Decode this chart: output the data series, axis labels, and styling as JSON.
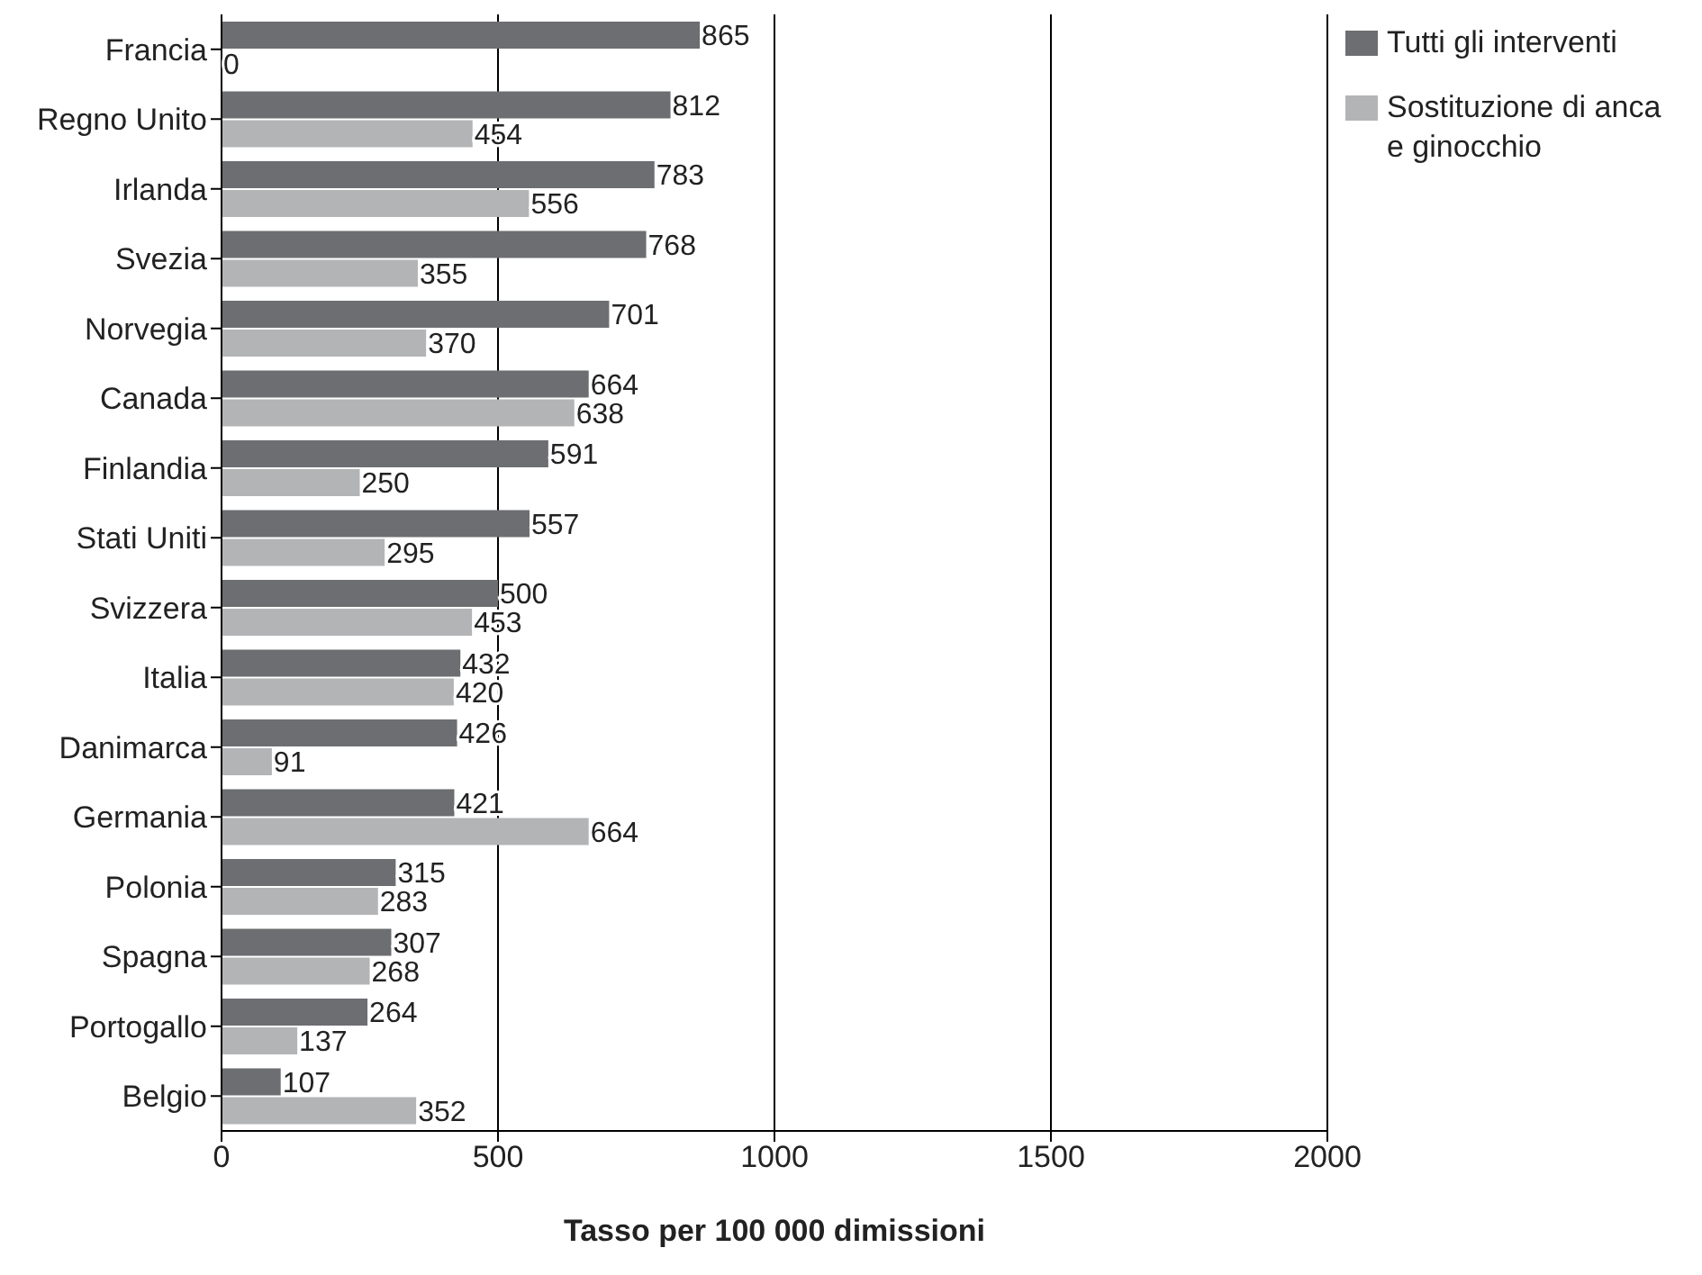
{
  "chart_data": {
    "type": "bar",
    "orientation": "horizontal",
    "xlabel": "Tasso per 100 000 dimissioni",
    "categories": [
      "Francia",
      "Regno Unito",
      "Irlanda",
      "Svezia",
      "Norvegia",
      "Canada",
      "Finlandia",
      "Stati Uniti",
      "Svizzera",
      "Italia",
      "Danimarca",
      "Germania",
      "Polonia",
      "Spagna",
      "Portogallo",
      "Belgio"
    ],
    "series": [
      {
        "name": "Tutti gli interventi",
        "color": "#6d6e71",
        "values": [
          865,
          812,
          783,
          768,
          701,
          664,
          591,
          557,
          500,
          432,
          426,
          421,
          315,
          307,
          264,
          107
        ]
      },
      {
        "name": "Sostituzione di anca e ginocchio",
        "color": "#b3b4b6",
        "values": [
          0,
          454,
          556,
          355,
          370,
          638,
          250,
          295,
          453,
          420,
          91,
          664,
          283,
          268,
          137,
          352
        ]
      }
    ],
    "xlim": [
      0,
      2000
    ],
    "xticks": [
      0,
      500,
      1000,
      1500,
      2000
    ],
    "grid": "x",
    "legend": "top right",
    "data_labels": true
  }
}
